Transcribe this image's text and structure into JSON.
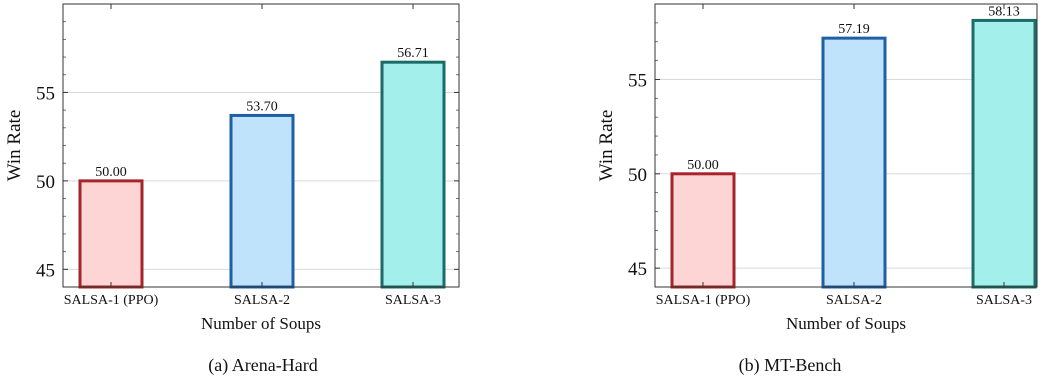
{
  "chart_data": [
    {
      "type": "bar",
      "caption": "(a) Arena-Hard",
      "categories": [
        "SALSA-1 (PPO)",
        "SALSA-2",
        "SALSA-3"
      ],
      "values": [
        50.0,
        53.7,
        56.71
      ],
      "value_labels": [
        "50.00",
        "53.70",
        "56.71"
      ],
      "xlabel": "Number of Soups",
      "ylabel": "Win Rate",
      "ylim": [
        44,
        60
      ],
      "yticks": [
        45,
        50,
        55
      ],
      "grid": true,
      "fill_colors": [
        "#fdd5d5",
        "#bfe3fb",
        "#a3efec"
      ],
      "edge_colors": [
        "#a8242b",
        "#1f5fa4",
        "#1b6b66"
      ]
    },
    {
      "type": "bar",
      "caption": "(b) MT-Bench",
      "categories": [
        "SALSA-1 (PPO)",
        "SALSA-2",
        "SALSA-3"
      ],
      "values": [
        50.0,
        57.19,
        58.13
      ],
      "value_labels": [
        "50.00",
        "57.19",
        "58.13"
      ],
      "xlabel": "Number of Soups",
      "ylabel": "Win Rate",
      "ylim": [
        44,
        59
      ],
      "yticks": [
        45,
        50,
        55
      ],
      "grid": true,
      "fill_colors": [
        "#fdd5d5",
        "#bfe3fb",
        "#a3efec"
      ],
      "edge_colors": [
        "#a8242b",
        "#1f5fa4",
        "#1b6b66"
      ]
    }
  ]
}
